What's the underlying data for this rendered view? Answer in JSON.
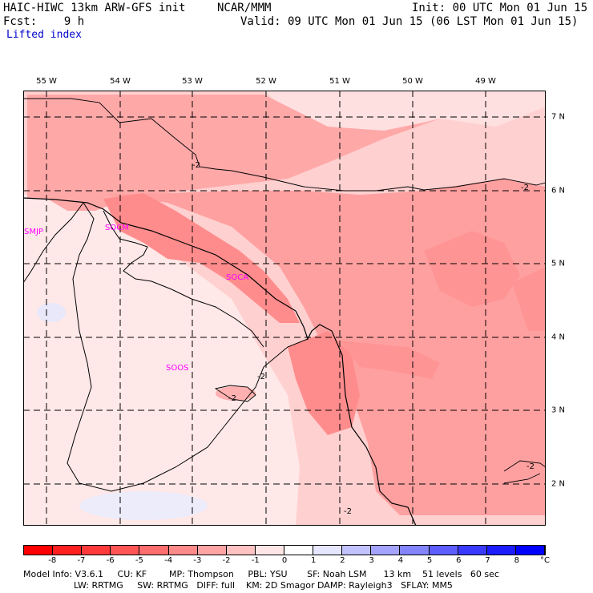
{
  "header": {
    "model": "HAIC-HIWC 13km ARW-GFS init",
    "org": "NCAR/MMM",
    "init": "Init: 00 UTC Mon 01 Jun 15",
    "fcst": "Fcst:    9 h",
    "valid": "Valid: 09 UTC Mon 01 Jun 15 (06 LST Mon 01 Jun 15)",
    "field": "Lifted index"
  },
  "map": {
    "lon_labels": [
      "55 W",
      "54 W",
      "53 W",
      "52 W",
      "51 W",
      "50 W",
      "49 W"
    ],
    "lat_labels": [
      "7 N",
      "6 N",
      "5 N",
      "4 N",
      "3 N",
      "2 N"
    ],
    "stations": [
      "SMJP",
      "SOCM",
      "SOCA",
      "SOOS"
    ],
    "contour_label": "-2"
  },
  "colorbar": {
    "labels": [
      "-8",
      "-7",
      "-6",
      "-5",
      "-4",
      "-3",
      "-2",
      "-1",
      "0",
      "1",
      "2",
      "3",
      "4",
      "5",
      "6",
      "7",
      "8"
    ],
    "unit": "°C",
    "colors": [
      "#ff0000",
      "#ff2020",
      "#ff3a3a",
      "#ff5555",
      "#ff6e6e",
      "#ff8a8a",
      "#ffa4a4",
      "#ffc2c2",
      "#ffe6e6",
      "#ffffff",
      "#e6e6ff",
      "#c2c2ff",
      "#a4a4ff",
      "#8484ff",
      "#5e5eff",
      "#3a3aff",
      "#1c1cff",
      "#0000ff"
    ]
  },
  "footer": {
    "line1": "Model Info: V3.6.1     CU: KF        MP: Thompson     PBL: YSU       SF: Noah LSM      13 km    51 levels   60 sec",
    "line2": "                  LW: RRTMG     SW: RRTMG   DIFF: full    KM: 2D Smagor DAMP: Rayleigh3   SFLAY: MM5"
  }
}
